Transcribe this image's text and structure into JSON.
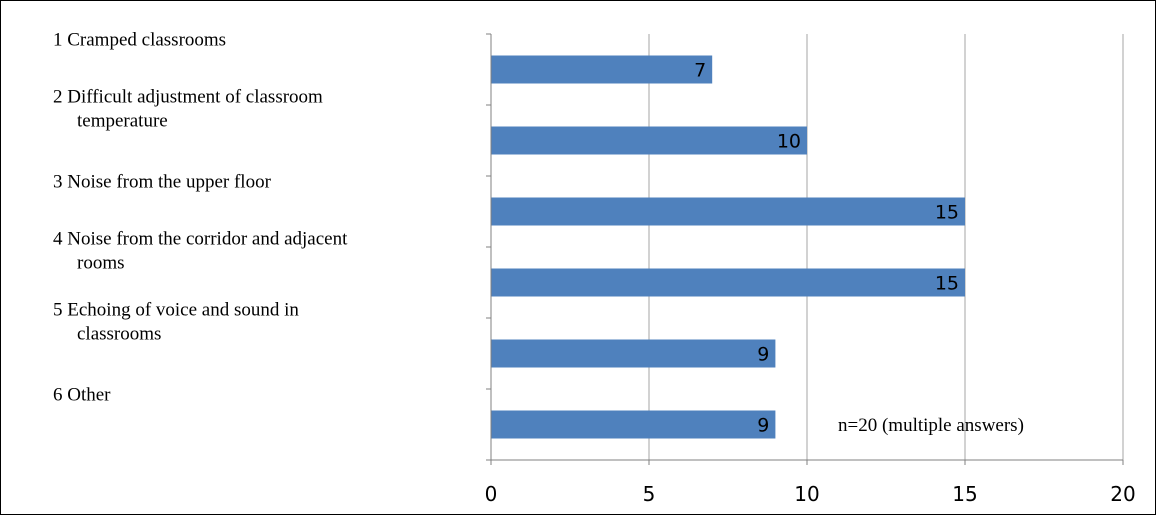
{
  "chart_data": {
    "type": "bar",
    "orientation": "horizontal",
    "categories": [
      [
        "1 Cramped classrooms"
      ],
      [
        "2 Difficult adjustment of classroom",
        "temperature"
      ],
      [
        "3 Noise from the upper floor"
      ],
      [
        "4 Noise from the corridor and adjacent",
        "rooms"
      ],
      [
        "5 Echoing of voice and sound in",
        "classrooms"
      ],
      [
        "6 Other"
      ]
    ],
    "values": [
      7,
      10,
      15,
      15,
      9,
      9
    ],
    "value_labels": [
      "7",
      "10",
      "15",
      "15",
      "9",
      "9"
    ],
    "xlim": [
      0,
      20
    ],
    "xticks": [
      0,
      5,
      10,
      15,
      20
    ],
    "xtick_labels": [
      "0",
      "5",
      "10",
      "15",
      "20"
    ],
    "grid": "vertical",
    "bar_color": "#4F81BD",
    "grid_color": "#A6A6A6",
    "annotation": "n=20 (multiple answers)",
    "title": "",
    "xlabel": "",
    "ylabel": ""
  }
}
